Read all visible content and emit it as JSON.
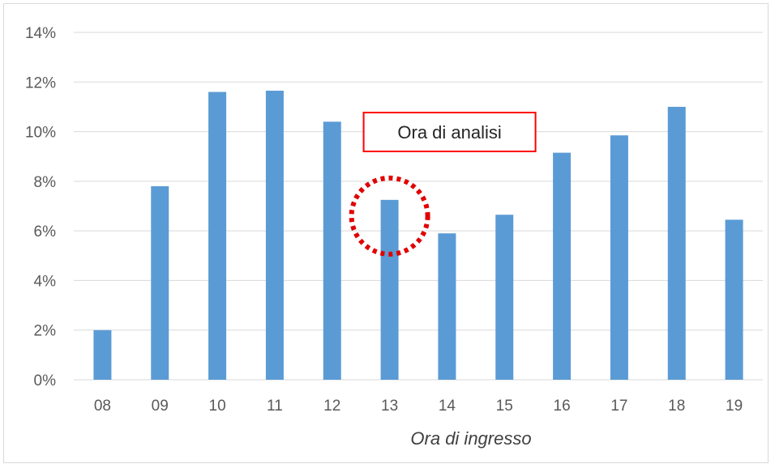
{
  "chart_data": {
    "type": "bar",
    "title": "",
    "xlabel": "Ora di ingresso",
    "ylabel": "",
    "categories": [
      "08",
      "09",
      "10",
      "11",
      "12",
      "13",
      "14",
      "15",
      "16",
      "17",
      "18",
      "19"
    ],
    "values": [
      2.0,
      7.8,
      11.6,
      11.65,
      10.4,
      7.25,
      5.9,
      6.65,
      9.15,
      9.85,
      11.0,
      6.45
    ],
    "value_unit": "%",
    "ylim": [
      0,
      14
    ],
    "yticks": [
      "0%",
      "2%",
      "4%",
      "6%",
      "8%",
      "10%",
      "12%",
      "14%"
    ],
    "grid": true,
    "legend": "none",
    "bar_color": "#5b9bd5",
    "annotation": {
      "text": "Ora di analisi",
      "target_category": "13",
      "box_border_color": "#ff0000",
      "circle_color": "#e00000",
      "circle_style": "dotted"
    }
  }
}
